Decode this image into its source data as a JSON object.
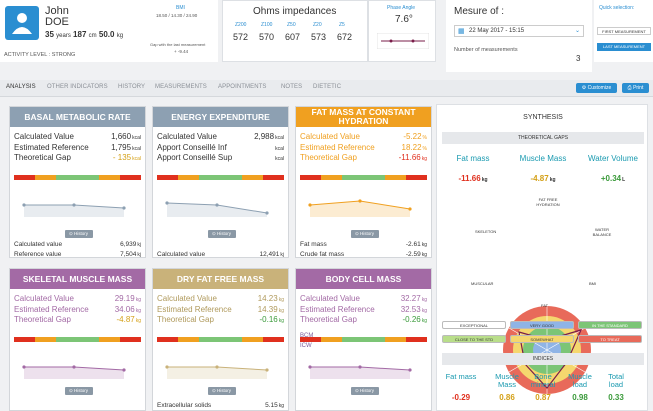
{
  "patient": {
    "first_name": "John",
    "last_name": "DOE",
    "age": "35",
    "age_unit": "years",
    "height": "187",
    "height_unit": "cm",
    "weight": "50.0",
    "weight_unit": "kg",
    "activity_label": "ACTIVITY LEVEL :",
    "activity_value": "STRONG"
  },
  "bmi": {
    "label": "BMI",
    "range": "18.50 / 14.30 / 24.90",
    "gap_label": "Gap with the last measurement",
    "gap_value": "+ -9.44"
  },
  "ohms": {
    "title": "Ohms impedances",
    "labels": [
      "Z200",
      "Z100",
      "Z50",
      "Z20",
      "Z5"
    ],
    "values": [
      "572",
      "570",
      "607",
      "573",
      "672"
    ]
  },
  "phase": {
    "label": "Phase Angle",
    "value": "7.6°"
  },
  "mesure": {
    "title": "Mesure of :",
    "date": "22 May 2017 - 15:15",
    "count_label": "Number of measurements",
    "count": "3"
  },
  "quick": {
    "label": "Quick selection:",
    "first": "FIRST MEASUREMENT",
    "last": "LAST MEASUREMENT"
  },
  "tabs": [
    "ANALYSIS",
    "OTHER INDICATORS",
    "HISTORY",
    "MEASUREMENTS",
    "APPOINTMENTS",
    "NOTES",
    "DIETETIC"
  ],
  "buttons": {
    "customize": "Customize",
    "print": "Print"
  },
  "history_label": "History",
  "cards": [
    {
      "title": "BASAL METABOLIC RATE",
      "color": "#8da0b2",
      "rows": [
        {
          "label": "Calculated Value",
          "value": "1,660",
          "unit": "kcal"
        },
        {
          "label": "Estimated Reference",
          "value": "1,795",
          "unit": "kcal"
        },
        {
          "label": "Theoretical Gap",
          "value": "- 135",
          "unit": "kcal",
          "accent": "#d4a017"
        }
      ],
      "foot": [
        {
          "label": "Calculated value",
          "value": "6,939",
          "unit": "kj"
        },
        {
          "label": "Reference value",
          "value": "7,504",
          "unit": "kj"
        }
      ]
    },
    {
      "title": "ENERGY EXPENDITURE",
      "color": "#8da0b2",
      "rows": [
        {
          "label": "Calculated Value",
          "value": "2,988",
          "unit": "kcal"
        },
        {
          "label": "Apport Conseillé Inf",
          "value": "",
          "unit": "kcal"
        },
        {
          "label": "Apport Conseillé Sup",
          "value": "",
          "unit": "kcal"
        }
      ],
      "foot": [
        {
          "label": "Calculated value",
          "value": "12,491",
          "unit": "kj"
        }
      ]
    },
    {
      "title": "FAT MASS AT CONSTANT HYDRATION",
      "color": "#f0a020",
      "rows": [
        {
          "label": "Calculated Value",
          "value": "-5.22",
          "unit": "%",
          "accent": "#f0a020",
          "labelColor": "#f0a020"
        },
        {
          "label": "Estimated Reference",
          "value": "18.22",
          "unit": "%",
          "labelColor": "#f0a020",
          "accent": "#f0a020"
        },
        {
          "label": "Theoretical Gap",
          "value": "-11.66",
          "unit": "kg",
          "labelColor": "#f0a020",
          "accent": "#e0301e"
        }
      ],
      "foot": [
        {
          "label": "Fat mass",
          "value": "-2.61",
          "unit": "kg"
        },
        {
          "label": "Crude fat mass",
          "value": "-2.59",
          "unit": "kg"
        }
      ]
    },
    {
      "title": "SKELETAL MUSCLE MASS",
      "color": "#a36aa5",
      "rows": [
        {
          "label": "Calculated Value",
          "value": "29.19",
          "unit": "kg",
          "labelColor": "#a36aa5",
          "accent": "#a36aa5"
        },
        {
          "label": "Estimated Reference",
          "value": "34.06",
          "unit": "kg",
          "labelColor": "#a36aa5",
          "accent": "#a36aa5"
        },
        {
          "label": "Theoretical Gap",
          "value": "-4.87",
          "unit": "kg",
          "labelColor": "#a36aa5",
          "accent": "#d4a017"
        }
      ],
      "foot": []
    },
    {
      "title": "DRY FAT FREE MASS",
      "color": "#c9b27a",
      "rows": [
        {
          "label": "Calculated Value",
          "value": "14.23",
          "unit": "kg",
          "labelColor": "#b09a5c",
          "accent": "#b09a5c"
        },
        {
          "label": "Estimated Reference",
          "value": "14.39",
          "unit": "kg",
          "labelColor": "#b09a5c",
          "accent": "#b09a5c"
        },
        {
          "label": "Theoretical Gap",
          "value": "-0.16",
          "unit": "kg",
          "labelColor": "#b09a5c",
          "accent": "#3a9a3a"
        }
      ],
      "foot": [
        {
          "label": "Extracellular solids",
          "value": "5.15",
          "unit": "kg"
        }
      ]
    },
    {
      "title": "BODY CELL MASS",
      "color": "#a36aa5",
      "rows": [
        {
          "label": "Calculated Value",
          "value": "32.27",
          "unit": "kg",
          "labelColor": "#a36aa5",
          "accent": "#a36aa5"
        },
        {
          "label": "Estimated Reference",
          "value": "32.53",
          "unit": "kg",
          "labelColor": "#a36aa5",
          "accent": "#a36aa5"
        },
        {
          "label": "Theoretical Gap",
          "value": "-0.26",
          "unit": "kg",
          "labelColor": "#a36aa5",
          "accent": "#3a9a3a"
        }
      ],
      "foot": []
    }
  ],
  "bcm_labels": [
    "BCM",
    "ICW"
  ],
  "synthesis": {
    "title": "SYNTHESIS",
    "gaps_title": "THEORETICAL GAPS",
    "gaps": [
      {
        "label": "Fat mass",
        "value": "-11.66",
        "unit": "kg",
        "color": "#e0301e"
      },
      {
        "label": "Muscle Mass",
        "value": "-4.87",
        "unit": "kg",
        "color": "#d4a017"
      },
      {
        "label": "Water Volume",
        "value": "+0.34",
        "unit": "L",
        "color": "#3a9a3a"
      }
    ],
    "radar_labels": {
      "top": "FAT FREE HYDRATION",
      "left": "SKELETON",
      "right": "WATER BALANCE",
      "bl": "MUSCULAR",
      "br": "BMI",
      "bottom": "FAT"
    },
    "legend": [
      "EXCEPTIONAL",
      "VERY GOOD",
      "IN THE STANDARD",
      "CLOSE TO THE STD",
      "SOMEWHAT",
      "TO TREAT"
    ],
    "legend_colors": [
      "#ffffff",
      "#8fb4e6",
      "#7cc576",
      "#b9de8a",
      "#f5d76e",
      "#e86a5a"
    ],
    "indices_title": "INDICES",
    "indices": [
      {
        "label": "Fat mass",
        "value": "-0.29",
        "color": "#e0301e"
      },
      {
        "label": "Muscle Mass",
        "value": "0.86",
        "color": "#d4a017"
      },
      {
        "label": "Bone mineral",
        "value": "0.87",
        "color": "#d4a017"
      },
      {
        "label": "Muscle load",
        "value": "0.98",
        "color": "#3a9a3a"
      },
      {
        "label": "Total load",
        "value": "0.33",
        "color": "#3a9a3a"
      }
    ]
  }
}
